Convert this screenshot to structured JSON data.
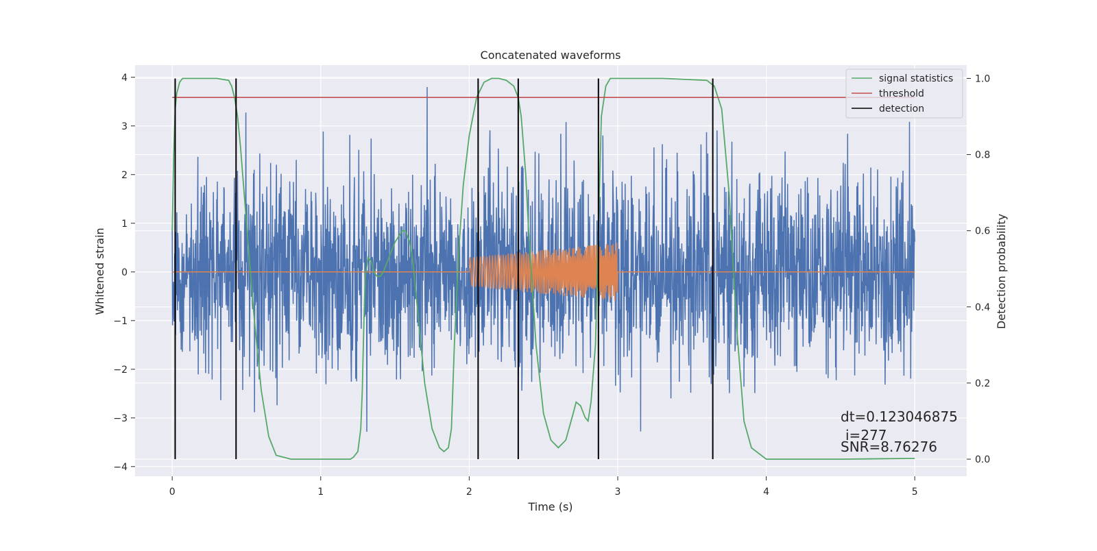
{
  "chart_data": {
    "type": "line",
    "title": "Concatenated waveforms",
    "xlabel": "Time (s)",
    "ylabel": "Whitened strain",
    "y2label": "Detection probability",
    "xlim": [
      -0.25,
      5.35
    ],
    "ylim": [
      -4.2,
      4.25
    ],
    "y2lim": [
      -0.045,
      1.035
    ],
    "x_ticks": [
      "0",
      "1",
      "2",
      "3",
      "4",
      "5"
    ],
    "y_ticks": [
      "4",
      "3",
      "2",
      "1",
      "0",
      "−1",
      "−2",
      "−3",
      "−4"
    ],
    "y2_ticks": [
      "1.0",
      "0.8",
      "0.6",
      "0.4",
      "0.2",
      "0.0"
    ],
    "grid": true,
    "legend_position": "top-right",
    "legend": [
      "signal statistics",
      "threshold",
      "detection"
    ],
    "colors": {
      "strain": "#4c72b0",
      "injection": "#dd8452",
      "signal_statistics": "#55a868",
      "threshold": "#c44e52",
      "detection": "#000000",
      "background": "#eaeaf2",
      "grid": "#ffffff"
    },
    "series": [
      {
        "name": "",
        "description": "whitened strain noise",
        "x_range": [
          0,
          5
        ],
        "amplitude_typical": 1.2,
        "amplitude_peak_max": 3.8,
        "amplitude_trough_min": -3.3
      },
      {
        "name": "",
        "description": "injected chirp waveform",
        "x_range": [
          0,
          5
        ],
        "chirp_start": 2.0,
        "chirp_end": 3.0,
        "amplitude_start": 0.3,
        "amplitude_end": 0.6
      },
      {
        "name": "signal statistics",
        "axis": "y2",
        "x": [
          0.0,
          0.01,
          0.02,
          0.03,
          0.05,
          0.07,
          0.1,
          0.2,
          0.3,
          0.38,
          0.4,
          0.42,
          0.44,
          0.46,
          0.5,
          0.55,
          0.6,
          0.65,
          0.7,
          0.8,
          1.0,
          1.2,
          1.22,
          1.25,
          1.27,
          1.28,
          1.29,
          1.3,
          1.32,
          1.34,
          1.36,
          1.38,
          1.4,
          1.42,
          1.45,
          1.5,
          1.55,
          1.57,
          1.6,
          1.62,
          1.65,
          1.7,
          1.75,
          1.8,
          1.83,
          1.86,
          1.88,
          1.9,
          1.93,
          1.96,
          2.0,
          2.05,
          2.1,
          2.15,
          2.2,
          2.25,
          2.3,
          2.33,
          2.35,
          2.38,
          2.4,
          2.45,
          2.5,
          2.55,
          2.6,
          2.65,
          2.7,
          2.72,
          2.75,
          2.78,
          2.8,
          2.82,
          2.85,
          2.87,
          2.89,
          2.92,
          2.95,
          3.0,
          3.3,
          3.6,
          3.65,
          3.7,
          3.75,
          3.8,
          3.85,
          3.9,
          4.0,
          4.5,
          5.0
        ],
        "y": [
          0.6,
          0.8,
          0.92,
          0.96,
          0.99,
          1.0,
          1.0,
          1.0,
          1.0,
          0.995,
          0.98,
          0.95,
          0.9,
          0.82,
          0.62,
          0.38,
          0.18,
          0.06,
          0.01,
          0.0,
          0.0,
          0.0,
          0.005,
          0.02,
          0.08,
          0.18,
          0.35,
          0.48,
          0.53,
          0.52,
          0.49,
          0.48,
          0.48,
          0.49,
          0.52,
          0.57,
          0.6,
          0.6,
          0.57,
          0.52,
          0.4,
          0.2,
          0.08,
          0.03,
          0.02,
          0.03,
          0.08,
          0.3,
          0.55,
          0.72,
          0.85,
          0.95,
          0.99,
          1.0,
          1.0,
          0.995,
          0.98,
          0.95,
          0.9,
          0.75,
          0.6,
          0.3,
          0.12,
          0.05,
          0.03,
          0.05,
          0.12,
          0.15,
          0.14,
          0.11,
          0.1,
          0.15,
          0.3,
          0.6,
          0.9,
          0.98,
          1.0,
          1.0,
          1.0,
          0.995,
          0.98,
          0.92,
          0.7,
          0.35,
          0.1,
          0.03,
          0.0,
          0.0,
          0.002
        ]
      },
      {
        "name": "threshold",
        "axis": "y2",
        "x": [
          0,
          5
        ],
        "y": [
          0.95,
          0.95
        ]
      }
    ],
    "detections_x": [
      0.02,
      0.43,
      2.06,
      2.33,
      2.87,
      3.64
    ],
    "annotations": [
      "dt=0.123046875",
      "i=277",
      "SNR=8.76276"
    ]
  }
}
